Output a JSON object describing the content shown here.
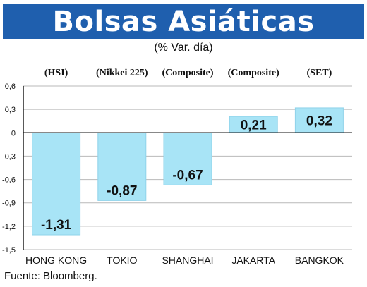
{
  "title": "Bolsas Asiáticas",
  "subtitle": "(% Var. día)",
  "source": "Fuente: Bloomberg.",
  "colors": {
    "bar": "#a8e4f6",
    "title_bg": "#1f5fae",
    "grid": "#b9b9b9"
  },
  "chart_data": {
    "type": "bar",
    "categories": [
      "HONG KONG",
      "TOKIO",
      "SHANGHAI",
      "JAKARTA",
      "BANGKOK"
    ],
    "index_labels": [
      "(HSI)",
      "(Nikkei 225)",
      "(Composite)",
      "(Composite)",
      "(SET)"
    ],
    "values": [
      -1.31,
      -0.87,
      -0.67,
      0.21,
      0.32
    ],
    "value_labels": [
      "-1,31",
      "-0,87",
      "-0,67",
      "0,21",
      "0,32"
    ],
    "ylim": [
      -1.5,
      0.6
    ],
    "yticks": [
      0.6,
      0.3,
      0,
      -0.3,
      -0.6,
      -0.9,
      -1.2,
      -1.5
    ],
    "ytick_labels": [
      "0,6",
      "0,3",
      "0",
      "-0,3",
      "-0,6",
      "-0,9",
      "-1,2",
      "-1,5"
    ],
    "grid": true,
    "title": "Bolsas Asiáticas",
    "xlabel": "",
    "ylabel": ""
  }
}
